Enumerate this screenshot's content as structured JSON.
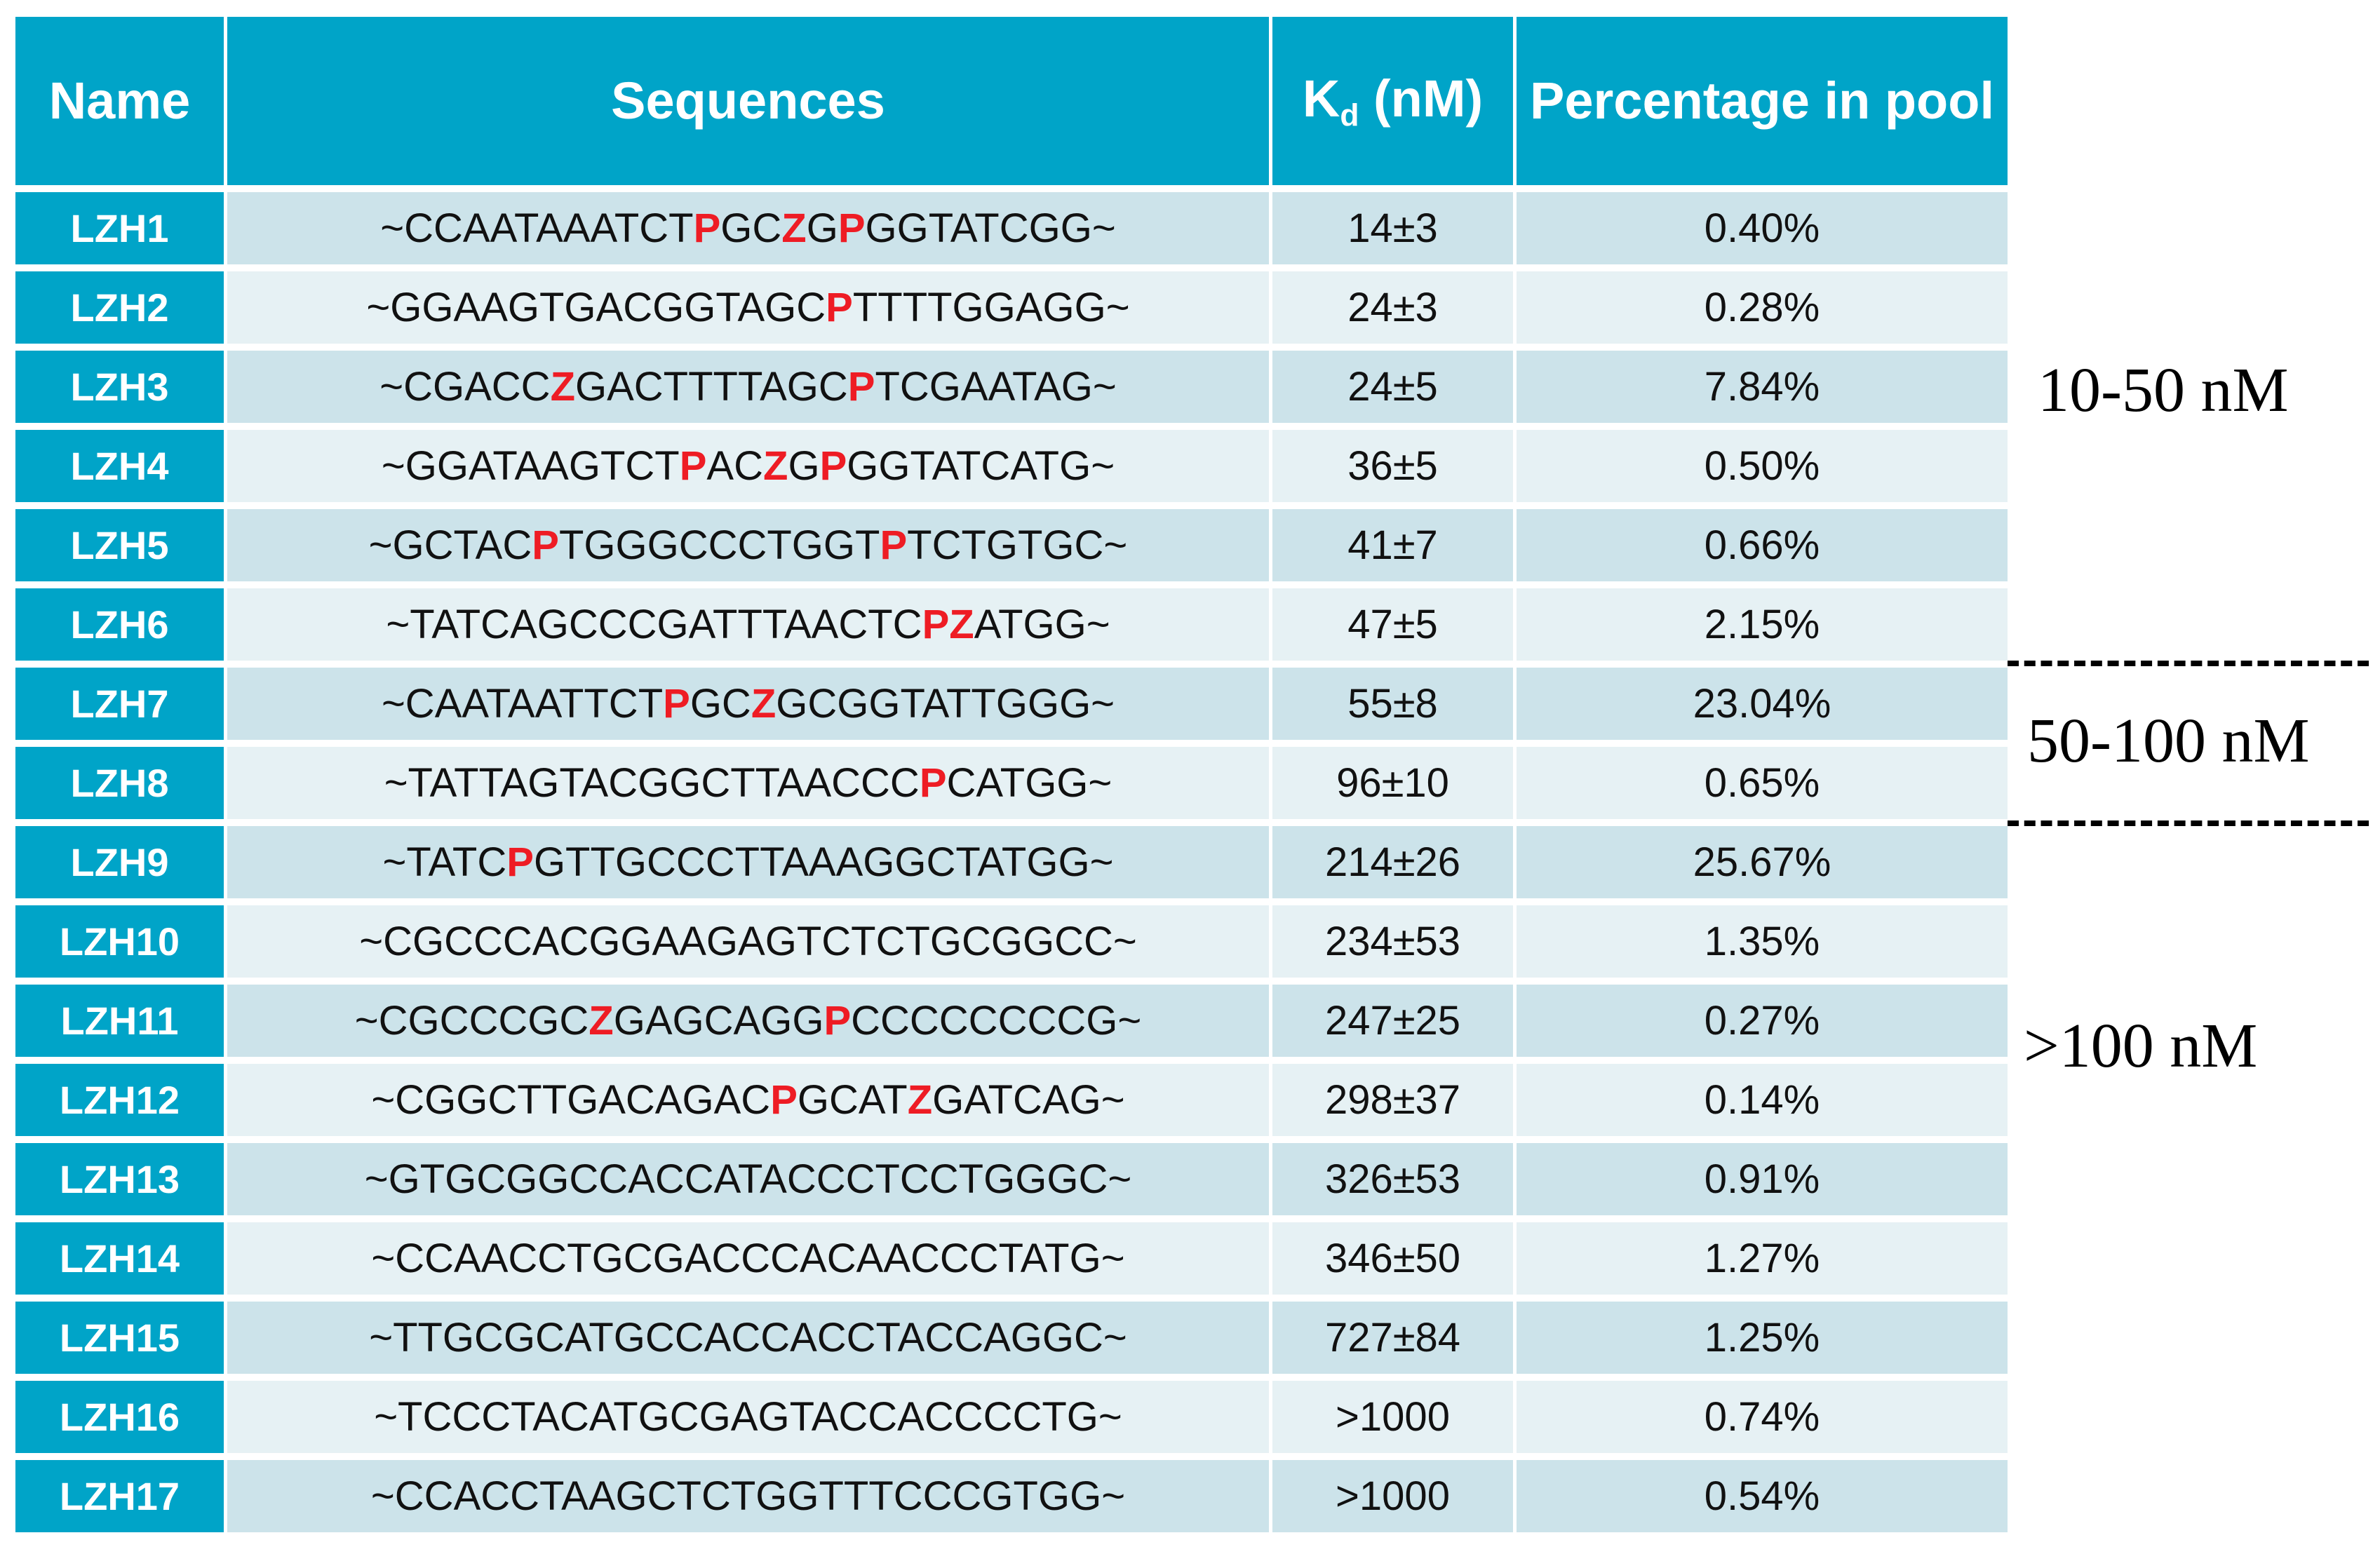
{
  "headers": {
    "name": "Name",
    "sequences": "Sequences",
    "kd_main": "K",
    "kd_sub": "d",
    "kd_unit": " (nM)",
    "percentage": "Percentage in pool"
  },
  "rows": [
    {
      "name": "LZH1",
      "seq": "~CCAATAAATCTPGCZGPGGTATCGG~",
      "kd": "14±3",
      "pct": "0.40%"
    },
    {
      "name": "LZH2",
      "seq": "~GGAAGTGACGGTAGCPTTTTGGAGG~",
      "kd": "24±3",
      "pct": "0.28%"
    },
    {
      "name": "LZH3",
      "seq": "~CGACCZGACTTTTAGCPTCGAATAG~",
      "kd": "24±5",
      "pct": "7.84%"
    },
    {
      "name": "LZH4",
      "seq": "~GGATAAGTCTPACZGPGGTATCATG~",
      "kd": "36±5",
      "pct": "0.50%"
    },
    {
      "name": "LZH5",
      "seq": "~GCTACPTGGGCCCTGGTPTCTGTGC~",
      "kd": "41±7",
      "pct": "0.66%"
    },
    {
      "name": "LZH6",
      "seq": "~TATCAGCCCGATTTAACTCPZATGG~",
      "kd": "47±5",
      "pct": "2.15%"
    },
    {
      "name": "LZH7",
      "seq": "~CAATAATTCTPGCZGCGGTATTGGG~",
      "kd": "55±8",
      "pct": "23.04%"
    },
    {
      "name": "LZH8",
      "seq": "~TATTAGTACGGCTTAACCCPCATGG~",
      "kd": "96±10",
      "pct": "0.65%"
    },
    {
      "name": "LZH9",
      "seq": "~TATCPGTTGCCCTTAAAGGCTATGG~",
      "kd": "214±26",
      "pct": "25.67%"
    },
    {
      "name": "LZH10",
      "seq": "~CGCCCACGGAAGAGTCTCTGCGGCC~",
      "kd": "234±53",
      "pct": "1.35%"
    },
    {
      "name": "LZH11",
      "seq": "~CGCCCGCZGAGCAGGPCCCCCCCCG~",
      "kd": "247±25",
      "pct": "0.27%"
    },
    {
      "name": "LZH12",
      "seq": "~CGGCTTGACAGACPGCATZGATCAG~",
      "kd": "298±37",
      "pct": "0.14%"
    },
    {
      "name": "LZH13",
      "seq": "~GTGCGGCCACCATACCCTCCTGGGC~",
      "kd": "326±53",
      "pct": "0.91%"
    },
    {
      "name": "LZH14",
      "seq": "~CCAACCTGCGACCCACAACCCTATG~",
      "kd": "346±50",
      "pct": "1.27%"
    },
    {
      "name": "LZH15",
      "seq": "~TTGCGCATGCCACCACCTACCAGGC~",
      "kd": "727±84",
      "pct": "1.25%"
    },
    {
      "name": "LZH16",
      "seq": "~TCCCTACATGCGAGTACCACCCCTG~",
      "kd": ">1000",
      "pct": "0.74%"
    },
    {
      "name": "LZH17",
      "seq": "~CCACCTAAGCTCTGGTTTCCCGTGG~",
      "kd": ">1000",
      "pct": "0.54%"
    }
  ],
  "modified_bases": [
    "P",
    "Z"
  ],
  "colors": {
    "header_bg": "#00A4C8",
    "row_dark": "#CCE3EA",
    "row_light": "#E6F1F4",
    "modified_base": "#EE1C24"
  },
  "range_labels": {
    "low": "10-50 nM",
    "mid": "50-100 nM",
    "high": ">100 nM"
  }
}
